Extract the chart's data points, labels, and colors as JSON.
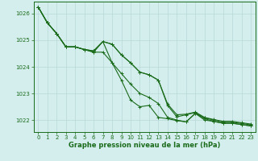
{
  "xlabel": "Graphe pression niveau de la mer (hPa)",
  "x_hours": [
    0,
    1,
    2,
    3,
    4,
    5,
    6,
    7,
    8,
    9,
    10,
    11,
    12,
    13,
    14,
    15,
    16,
    17,
    18,
    19,
    20,
    21,
    22,
    23
  ],
  "series": [
    [
      1026.25,
      1025.65,
      1025.25,
      1024.75,
      1024.75,
      1024.65,
      1024.55,
      1024.95,
      1024.15,
      1023.5,
      1022.75,
      1022.5,
      1022.55,
      1022.1,
      1022.05,
      1021.98,
      1021.93,
      1022.25,
      1022.0,
      1021.95,
      1021.88,
      1021.88,
      1021.83,
      1021.78
    ],
    [
      1026.25,
      1025.65,
      1025.25,
      1024.75,
      1024.75,
      1024.65,
      1024.55,
      1024.55,
      1024.15,
      1023.75,
      1023.35,
      1023.0,
      1022.85,
      1022.62,
      1022.1,
      1022.0,
      1021.93,
      1022.25,
      1022.05,
      1021.95,
      1021.88,
      1021.88,
      1021.83,
      1021.78
    ],
    [
      1026.25,
      1025.65,
      1025.25,
      1024.75,
      1024.75,
      1024.65,
      1024.6,
      1024.95,
      1024.85,
      1024.45,
      1024.15,
      1023.8,
      1023.7,
      1023.5,
      1022.6,
      1022.2,
      1022.22,
      1022.3,
      1022.1,
      1022.02,
      1021.95,
      1021.95,
      1021.9,
      1021.85
    ],
    [
      1026.25,
      1025.65,
      1025.25,
      1024.75,
      1024.75,
      1024.65,
      1024.6,
      1024.95,
      1024.85,
      1024.45,
      1024.15,
      1023.8,
      1023.7,
      1023.5,
      1022.55,
      1022.12,
      1022.2,
      1022.28,
      1022.08,
      1022.0,
      1021.92,
      1021.92,
      1021.87,
      1021.82
    ]
  ],
  "line_color": "#1a6b1a",
  "marker": "+",
  "markersize": 3,
  "linewidth": 0.8,
  "background_color": "#d4eeee",
  "grid_color": "#b8d8d8",
  "axis_color": "#1a6b1a",
  "tick_color": "#1a6b1a",
  "label_color": "#1a6b1a",
  "ylim": [
    1021.55,
    1026.45
  ],
  "yticks": [
    1022,
    1023,
    1024,
    1025,
    1026
  ],
  "xlim": [
    -0.5,
    23.5
  ],
  "xticks": [
    0,
    1,
    2,
    3,
    4,
    5,
    6,
    7,
    8,
    9,
    10,
    11,
    12,
    13,
    14,
    15,
    16,
    17,
    18,
    19,
    20,
    21,
    22,
    23
  ],
  "xlabel_fontsize": 6.0,
  "tick_fontsize": 5.0
}
